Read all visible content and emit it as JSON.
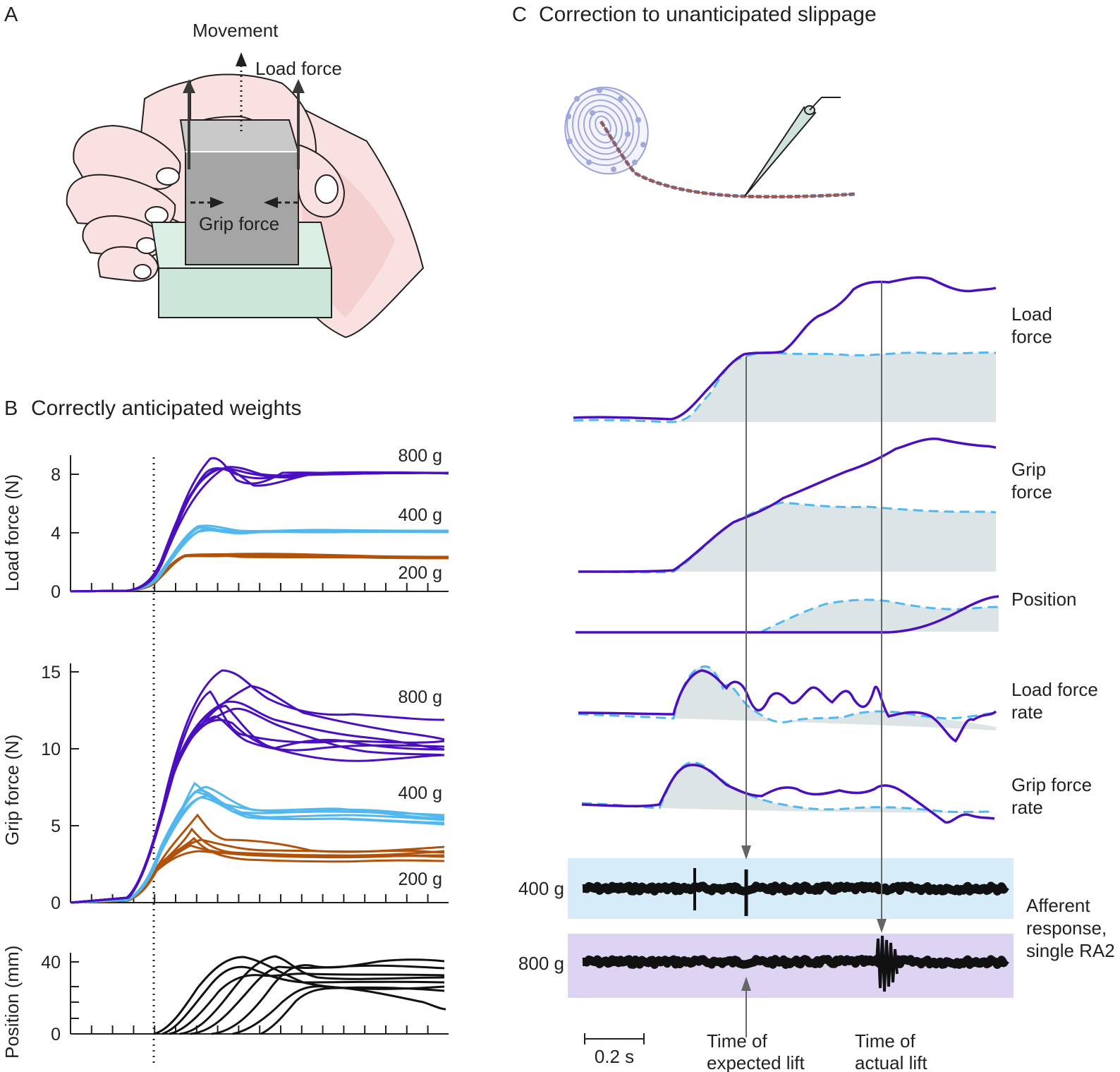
{
  "colors": {
    "purple": "#4a0fbf",
    "light_blue": "#52b7ee",
    "brown": "#b0520b",
    "black": "#111111",
    "gray_fill": "#dde4e5",
    "band_400": "#d7ecf9",
    "band_800": "#ddd3f3",
    "block_top": "#c9c9c9",
    "block_front": "#a5a5a5",
    "block_side": "#8e8e8e",
    "base_green": "#cce6d9",
    "skin": "#fae1e1",
    "skin_line": "#231f20"
  },
  "panelA": {
    "letter": "A",
    "movement": "Movement",
    "load_force": "Load force",
    "grip_force": "Grip force"
  },
  "panelB": {
    "letter": "B",
    "title": "Correctly anticipated weights",
    "load": {
      "ylabel": "Load force (N)",
      "yticks": [
        "0",
        "4",
        "8"
      ],
      "labels": {
        "w800": "800 g",
        "w400": "400 g",
        "w200": "200 g"
      }
    },
    "grip": {
      "ylabel": "Grip force (N)",
      "yticks": [
        "0",
        "5",
        "10",
        "15"
      ],
      "labels": {
        "w800": "800 g",
        "w400": "400 g",
        "w200": "200 g"
      }
    },
    "position": {
      "ylabel": "Position (mm)",
      "yticks": [
        "0",
        "40"
      ]
    }
  },
  "panelC": {
    "letter": "C",
    "title": "Correction to unanticipated slippage",
    "traces": {
      "load_force": [
        "Load",
        "force"
      ],
      "grip_force": [
        "Grip",
        "force"
      ],
      "position": "Position",
      "load_force_rate": [
        "Load force",
        "rate"
      ],
      "grip_force_rate": [
        "Grip force",
        "rate"
      ]
    },
    "afferent": {
      "w400": "400 g",
      "w800": "800 g",
      "label": [
        "Afferent",
        "response,",
        "single RA2"
      ]
    },
    "scale_bar": "0.2 s",
    "time_expected": [
      "Time of",
      "expected lift"
    ],
    "time_actual": [
      "Time of",
      "actual lift"
    ]
  },
  "chart_data": [
    {
      "type": "line",
      "ylabel": "Load force (N)",
      "ylim": [
        0,
        9.3
      ],
      "yticks": [
        0,
        4,
        8
      ],
      "series": [
        {
          "name": "800 g",
          "values": [
            8.1,
            8.2,
            8.3,
            8.2,
            8.2
          ]
        },
        {
          "name": "400 g",
          "values": [
            4.1,
            4.2,
            4.1,
            4.1,
            4.1
          ]
        },
        {
          "name": "200 g",
          "values": [
            2.3,
            2.4,
            2.4,
            2.3,
            2.3
          ]
        }
      ]
    },
    {
      "type": "line",
      "ylabel": "Grip force (N)",
      "ylim": [
        0,
        15.5
      ],
      "yticks": [
        0,
        5,
        10,
        15
      ],
      "series": [
        {
          "name": "800 g",
          "values": [
            15.4,
            14.4,
            12.0,
            11.5,
            10.5
          ]
        },
        {
          "name": "400 g",
          "values": [
            7.8,
            6.5,
            5.8,
            5.7,
            5.6
          ]
        },
        {
          "name": "200 g",
          "values": [
            5.9,
            4.0,
            3.2,
            3.0,
            3.0
          ]
        }
      ]
    },
    {
      "type": "line",
      "ylabel": "Position (mm)",
      "ylim": [
        0,
        40
      ],
      "yticks": [
        0,
        40
      ],
      "series": [
        {
          "values": [
            27,
            28,
            27,
            26,
            25
          ]
        }
      ]
    }
  ]
}
